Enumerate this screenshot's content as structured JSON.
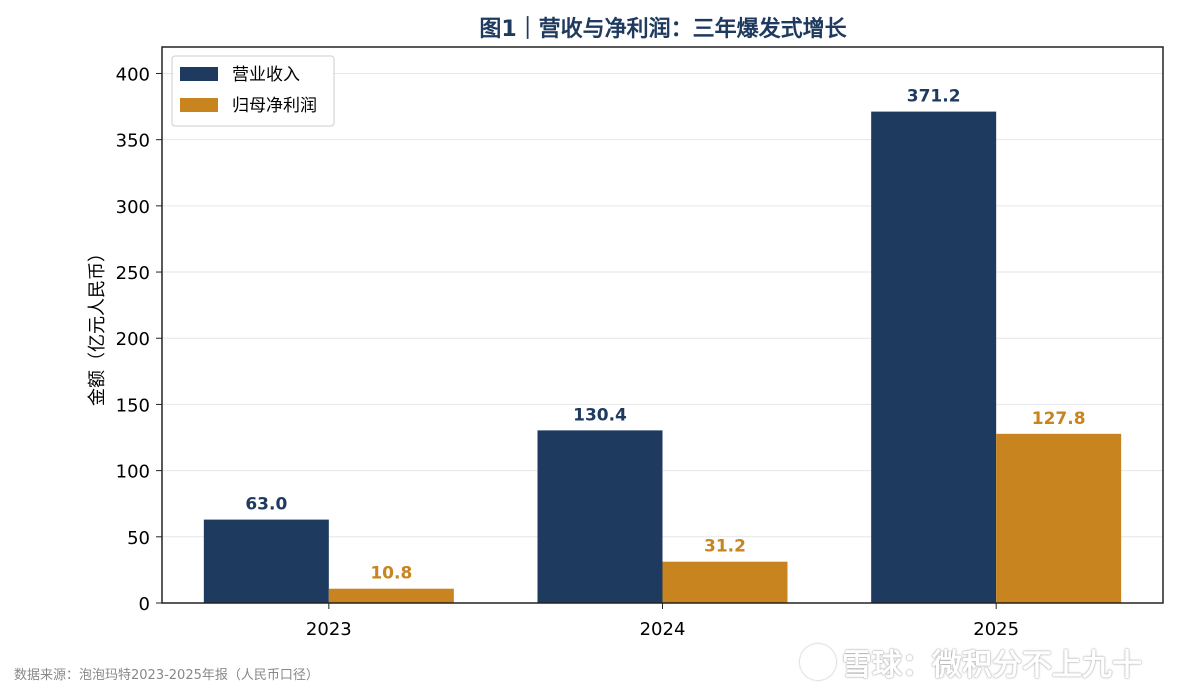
{
  "chart_data": {
    "type": "bar",
    "title": "图1｜营收与净利润：三年爆发式增长",
    "xlabel": "",
    "ylabel": "金额（亿元人民币）",
    "categories": [
      "2023",
      "2024",
      "2025"
    ],
    "series": [
      {
        "name": "营业收入",
        "values": [
          63.0,
          130.4,
          371.2
        ],
        "labels": [
          "63.0",
          "130.4",
          "371.2"
        ],
        "color": "#1f3a5f"
      },
      {
        "name": "归母净利润",
        "values": [
          10.8,
          31.2,
          127.8
        ],
        "labels": [
          "10.8",
          "31.2",
          "127.8"
        ],
        "color": "#c8841e"
      }
    ],
    "ylim": [
      0,
      420
    ],
    "yticks": [
      0,
      50,
      100,
      150,
      200,
      250,
      300,
      350,
      400
    ],
    "grid": "horizontal",
    "legend_position": "top-left"
  },
  "source_note": "数据来源：泡泡玛特2023-2025年报（人民币口径）",
  "watermark": "雪球：微积分不上九十"
}
